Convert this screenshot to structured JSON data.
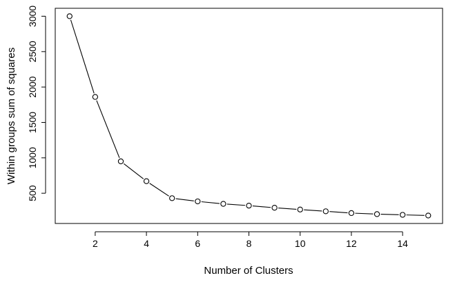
{
  "chart_data": {
    "type": "line",
    "title": "",
    "xlabel": "Number of Clusters",
    "ylabel": "Within groups sum of squares",
    "x": [
      1,
      2,
      3,
      4,
      5,
      6,
      7,
      8,
      9,
      10,
      11,
      12,
      13,
      14,
      15
    ],
    "series": [
      {
        "values": [
          3000,
          1860,
          950,
          670,
          430,
          385,
          350,
          325,
          295,
          270,
          245,
          220,
          205,
          195,
          185
        ]
      }
    ],
    "xlim": [
      0.44,
      15.56
    ],
    "ylim": [
      73,
      3112
    ],
    "xticks": [
      2,
      4,
      6,
      8,
      10,
      12,
      14
    ],
    "xtick_labels": [
      "2",
      "4",
      "6",
      "8",
      "10",
      "12",
      "14"
    ],
    "yticks": [
      500,
      1000,
      1500,
      2000,
      2500,
      3000
    ],
    "ytick_labels": [
      "500",
      "1000",
      "1500",
      "2000",
      "2500",
      "3000"
    ],
    "marker": "open-circle",
    "grid": false,
    "legend": "none",
    "colors": {
      "line": "#000000",
      "marker_fill": "#ffffff",
      "background": "#ffffff"
    }
  }
}
